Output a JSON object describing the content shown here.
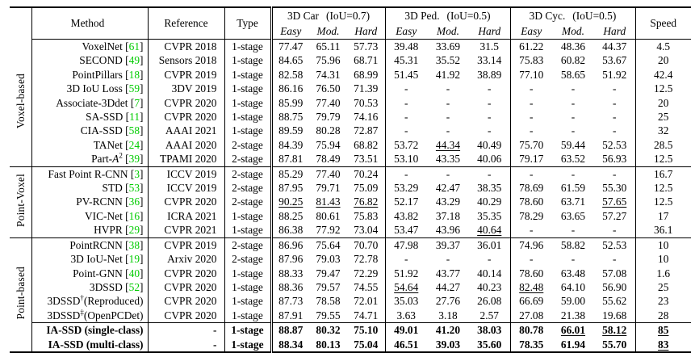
{
  "table": {
    "columns": {
      "method": "Method",
      "reference": "Reference",
      "type": "Type",
      "speed": "Speed"
    },
    "groups": [
      {
        "title": "3D Car",
        "iou": "(IoU=0.7)"
      },
      {
        "title": "3D Ped.",
        "iou": "(IoU=0.5)"
      },
      {
        "title": "3D Cyc.",
        "iou": "(IoU=0.5)"
      }
    ],
    "difficulty": [
      "Easy",
      "Mod.",
      "Hard"
    ],
    "citation_color": "#00CC00",
    "sections": [
      {
        "label": "Voxel-based",
        "rows": [
          {
            "method": "VoxelNet",
            "cite": "61",
            "ref": "CVPR 2018",
            "type": "1-stage",
            "vals": [
              "77.47",
              "65.11",
              "57.73",
              "39.48",
              "33.69",
              "31.5",
              "61.22",
              "48.36",
              "44.37",
              "4.5"
            ],
            "ul": []
          },
          {
            "method": "SECOND",
            "cite": "49",
            "ref": "Sensors 2018",
            "type": "1-stage",
            "vals": [
              "84.65",
              "75.96",
              "68.71",
              "45.31",
              "35.52",
              "33.14",
              "75.83",
              "60.82",
              "53.67",
              "20"
            ],
            "ul": []
          },
          {
            "method": "PointPillars",
            "cite": "18",
            "ref": "CVPR 2019",
            "type": "1-stage",
            "vals": [
              "82.58",
              "74.31",
              "68.99",
              "51.45",
              "41.92",
              "38.89",
              "77.10",
              "58.65",
              "51.92",
              "42.4"
            ],
            "ul": []
          },
          {
            "method": "3D IoU Loss",
            "cite": "59",
            "ref": "3DV 2019",
            "type": "1-stage",
            "vals": [
              "86.16",
              "76.50",
              "71.39",
              "-",
              "-",
              "-",
              "-",
              "-",
              "-",
              "12.5"
            ],
            "ul": []
          },
          {
            "method": "Associate-3Ddet",
            "cite": "7",
            "ref": "CVPR 2020",
            "type": "1-stage",
            "vals": [
              "85.99",
              "77.40",
              "70.53",
              "-",
              "-",
              "-",
              "-",
              "-",
              "-",
              "20"
            ],
            "ul": []
          },
          {
            "method": "SA-SSD",
            "cite": "11",
            "ref": "CVPR 2020",
            "type": "1-stage",
            "vals": [
              "88.75",
              "79.79",
              "74.16",
              "-",
              "-",
              "-",
              "-",
              "-",
              "-",
              "25"
            ],
            "ul": []
          },
          {
            "method": "CIA-SSD",
            "cite": "58",
            "ref": "AAAI 2021",
            "type": "1-stage",
            "vals": [
              "89.59",
              "80.28",
              "72.87",
              "-",
              "-",
              "-",
              "-",
              "-",
              "-",
              "32"
            ],
            "ul": []
          },
          {
            "method": "TANet",
            "cite": "24",
            "ref": "AAAI 2020",
            "type": "2-stage",
            "vals": [
              "84.39",
              "75.94",
              "68.82",
              "53.72",
              "44.34",
              "40.49",
              "75.70",
              "59.44",
              "52.53",
              "28.5"
            ],
            "ul": [
              4
            ]
          },
          {
            "method": "Part-",
            "italic": "A",
            "sup": "2",
            "cite": "39",
            "ref": "TPAMI 2020",
            "type": "2-stage",
            "vals": [
              "87.81",
              "78.49",
              "73.51",
              "53.10",
              "43.35",
              "40.06",
              "79.17",
              "63.52",
              "56.93",
              "12.5"
            ],
            "ul": []
          }
        ]
      },
      {
        "label": "Point-Voxel",
        "rows": [
          {
            "method": "Fast Point R-CNN",
            "cite": "3",
            "ref": "ICCV 2019",
            "type": "2-stage",
            "vals": [
              "85.29",
              "77.40",
              "70.24",
              "-",
              "-",
              "-",
              "-",
              "-",
              "-",
              "16.7"
            ],
            "ul": []
          },
          {
            "method": "STD",
            "cite": "53",
            "ref": "ICCV 2019",
            "type": "2-stage",
            "vals": [
              "87.95",
              "79.71",
              "75.09",
              "53.29",
              "42.47",
              "38.35",
              "78.69",
              "61.59",
              "55.30",
              "12.5"
            ],
            "ul": []
          },
          {
            "method": "PV-RCNN",
            "cite": "36",
            "ref": "CVPR 2020",
            "type": "2-stage",
            "vals": [
              "90.25",
              "81.43",
              "76.82",
              "52.17",
              "43.29",
              "40.29",
              "78.60",
              "63.71",
              "57.65",
              "12.5"
            ],
            "ul": [
              0,
              1,
              2,
              8
            ]
          },
          {
            "method": "VIC-Net",
            "cite": "16",
            "ref": "ICRA 2021",
            "type": "1-stage",
            "vals": [
              "88.25",
              "80.61",
              "75.83",
              "43.82",
              "37.18",
              "35.35",
              "78.29",
              "63.65",
              "57.27",
              "17"
            ],
            "ul": []
          },
          {
            "method": "HVPR",
            "cite": "29",
            "ref": "CVPR 2021",
            "type": "1-stage",
            "vals": [
              "86.38",
              "77.92",
              "73.04",
              "53.47",
              "43.96",
              "40.64",
              "-",
              "-",
              "-",
              "36.1"
            ],
            "ul": [
              5
            ]
          }
        ]
      },
      {
        "label": "Point-based",
        "rows": [
          {
            "method": "PointRCNN",
            "cite": "38",
            "ref": "CVPR 2019",
            "type": "2-stage",
            "vals": [
              "86.96",
              "75.64",
              "70.70",
              "47.98",
              "39.37",
              "36.01",
              "74.96",
              "58.82",
              "52.53",
              "10"
            ],
            "ul": []
          },
          {
            "method": "3D IoU-Net",
            "cite": "19",
            "ref": "Arxiv 2020",
            "type": "2-stage",
            "vals": [
              "87.96",
              "79.03",
              "72.78",
              "-",
              "-",
              "-",
              "-",
              "-",
              "-",
              "10"
            ],
            "ul": []
          },
          {
            "method": "Point-GNN",
            "cite": "40",
            "ref": "CVPR 2020",
            "type": "1-stage",
            "vals": [
              "88.33",
              "79.47",
              "72.29",
              "51.92",
              "43.77",
              "40.14",
              "78.60",
              "63.48",
              "57.08",
              "1.6"
            ],
            "ul": []
          },
          {
            "method": "3DSSD",
            "cite": "52",
            "ref": "CVPR 2020",
            "type": "1-stage",
            "vals": [
              "88.36",
              "79.57",
              "74.55",
              "54.64",
              "44.27",
              "40.23",
              "82.48",
              "64.10",
              "56.90",
              "25"
            ],
            "ul": [
              3,
              6
            ]
          },
          {
            "method": "3DSSD",
            "sup": "†",
            "suffix": "(Reproduced)",
            "ref": "CVPR 2020",
            "type": "1-stage",
            "vals": [
              "87.73",
              "78.58",
              "72.01",
              "35.03",
              "27.76",
              "26.08",
              "66.69",
              "59.00",
              "55.62",
              "23"
            ],
            "ul": []
          },
          {
            "method": "3DSSD",
            "sup": "‡",
            "suffix": "(OpenPCDet)",
            "ref": "CVPR 2020",
            "type": "1-stage",
            "vals": [
              "87.91",
              "79.55",
              "74.71",
              "3.63",
              "3.18",
              "2.57",
              "27.08",
              "21.38",
              "19.68",
              "28"
            ],
            "ul": []
          },
          {
            "method": "IA-SSD (single-class)",
            "ref": "-",
            "type": "1-stage",
            "bold": true,
            "subTop": true,
            "vals": [
              "88.87",
              "80.32",
              "75.10",
              "49.01",
              "41.20",
              "38.03",
              "80.78",
              "66.01",
              "58.12",
              "85"
            ],
            "ul": [
              7,
              8,
              9
            ]
          },
          {
            "method": "IA-SSD (multi-class)",
            "ref": "-",
            "type": "1-stage",
            "bold": true,
            "vals": [
              "88.34",
              "80.13",
              "75.04",
              "46.51",
              "39.03",
              "35.60",
              "78.35",
              "61.94",
              "55.70",
              "83"
            ],
            "ul": [
              9
            ]
          }
        ]
      }
    ]
  }
}
